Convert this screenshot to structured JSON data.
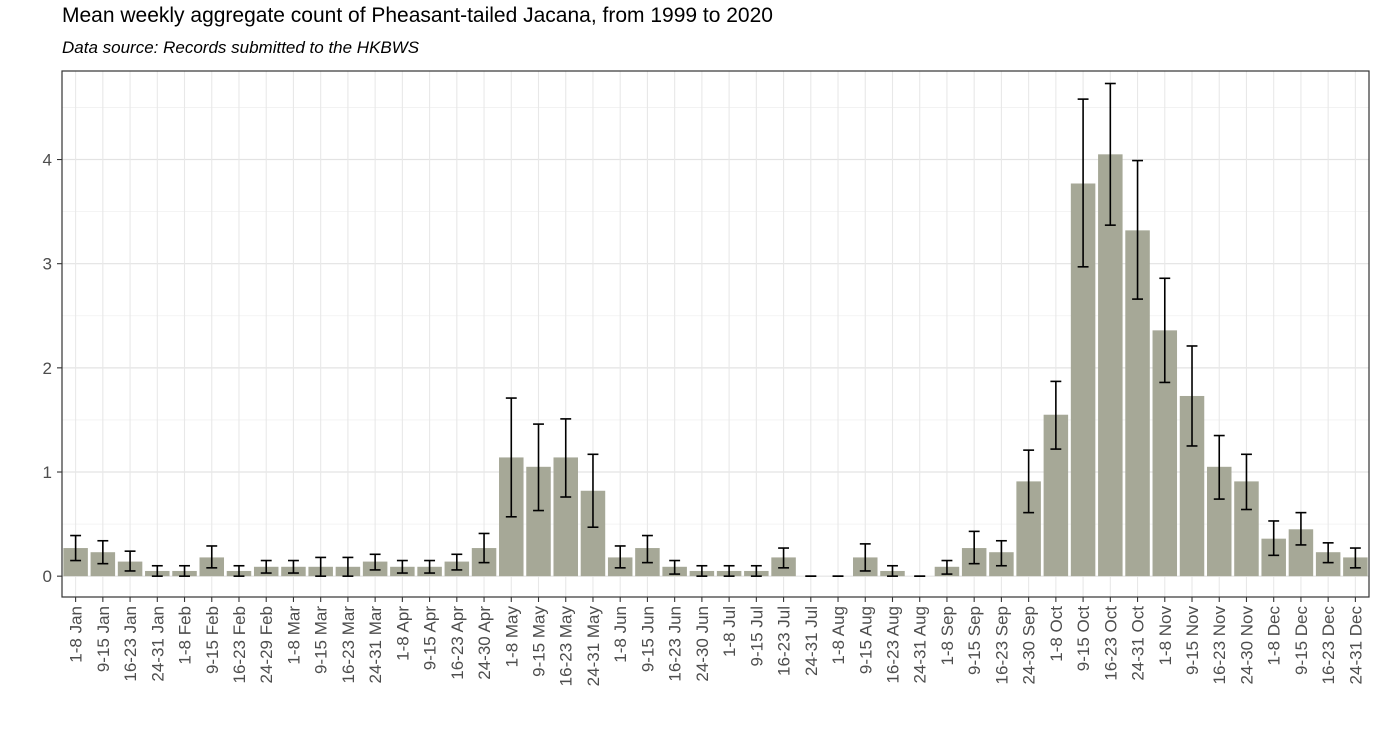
{
  "chart_data": {
    "type": "bar",
    "title": "Mean weekly aggregate count of Pheasant-tailed Jacana, from 1999 to 2020",
    "subtitle": "Data source: Records submitted to the HKBWS",
    "xlabel": "",
    "ylabel": "",
    "ylim": [
      -0.2,
      4.85
    ],
    "yticks": [
      0,
      1,
      2,
      3,
      4
    ],
    "grid": true,
    "bar_color": "#a6a897",
    "error_color": "#000000",
    "categories": [
      "1-8 Jan",
      "9-15 Jan",
      "16-23 Jan",
      "24-31 Jan",
      "1-8 Feb",
      "9-15 Feb",
      "16-23 Feb",
      "24-29 Feb",
      "1-8 Mar",
      "9-15 Mar",
      "16-23 Mar",
      "24-31 Mar",
      "1-8 Apr",
      "9-15 Apr",
      "16-23 Apr",
      "24-30 Apr",
      "1-8 May",
      "9-15 May",
      "16-23 May",
      "24-31 May",
      "1-8 Jun",
      "9-15 Jun",
      "16-23 Jun",
      "24-30 Jun",
      "1-8 Jul",
      "9-15 Jul",
      "16-23 Jul",
      "24-31 Jul",
      "1-8 Aug",
      "9-15 Aug",
      "16-23 Aug",
      "24-31 Aug",
      "1-8 Sep",
      "9-15 Sep",
      "16-23 Sep",
      "24-30 Sep",
      "1-8 Oct",
      "9-15 Oct",
      "16-23 Oct",
      "24-31 Oct",
      "1-8 Nov",
      "9-15 Nov",
      "16-23 Nov",
      "24-30 Nov",
      "1-8 Dec",
      "9-15 Dec",
      "16-23 Dec",
      "24-31 Dec"
    ],
    "values": [
      0.27,
      0.23,
      0.14,
      0.05,
      0.05,
      0.18,
      0.05,
      0.09,
      0.09,
      0.09,
      0.09,
      0.14,
      0.09,
      0.09,
      0.14,
      0.27,
      1.14,
      1.05,
      1.14,
      0.82,
      0.18,
      0.27,
      0.09,
      0.05,
      0.05,
      0.05,
      0.18,
      0.0,
      0.0,
      0.18,
      0.05,
      0.0,
      0.09,
      0.27,
      0.23,
      0.91,
      1.55,
      3.77,
      4.05,
      3.32,
      2.36,
      1.73,
      1.05,
      0.91,
      0.36,
      0.45,
      0.23,
      0.18
    ],
    "error_low": [
      0.15,
      0.12,
      0.05,
      0.0,
      0.0,
      0.08,
      0.0,
      0.03,
      0.03,
      0.0,
      0.0,
      0.06,
      0.03,
      0.03,
      0.06,
      0.13,
      0.57,
      0.63,
      0.76,
      0.47,
      0.08,
      0.13,
      0.02,
      0.0,
      0.0,
      0.0,
      0.08,
      0.0,
      0.0,
      0.05,
      0.0,
      0.0,
      0.02,
      0.12,
      0.1,
      0.61,
      1.22,
      2.97,
      3.37,
      2.66,
      1.86,
      1.25,
      0.74,
      0.64,
      0.2,
      0.3,
      0.13,
      0.08
    ],
    "error_high": [
      0.39,
      0.34,
      0.24,
      0.1,
      0.1,
      0.29,
      0.1,
      0.15,
      0.15,
      0.18,
      0.18,
      0.21,
      0.15,
      0.15,
      0.21,
      0.41,
      1.71,
      1.46,
      1.51,
      1.17,
      0.29,
      0.39,
      0.15,
      0.1,
      0.1,
      0.1,
      0.27,
      0.0,
      0.0,
      0.31,
      0.1,
      0.0,
      0.15,
      0.43,
      0.34,
      1.21,
      1.87,
      4.58,
      4.73,
      3.99,
      2.86,
      2.21,
      1.35,
      1.17,
      0.53,
      0.61,
      0.32,
      0.27
    ]
  }
}
